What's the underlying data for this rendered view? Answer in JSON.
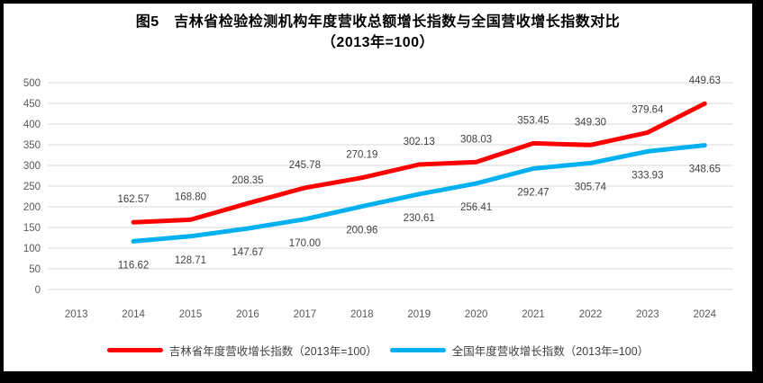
{
  "chart_data": {
    "type": "line",
    "title": "图5　吉林省检验检测机构年度营收总额增长指数与全国营收增长指数对比",
    "subtitle": "（2013年=100）",
    "categories": [
      "2013",
      "2014",
      "2015",
      "2016",
      "2017",
      "2018",
      "2019",
      "2020",
      "2021",
      "2022",
      "2023",
      "2024"
    ],
    "series": [
      {
        "name": "吉林省年度营收增长指数（2013年=100）",
        "color": "#FF0000",
        "start_index": 1,
        "label_position": "above",
        "values": [
          162.57,
          168.8,
          208.35,
          245.78,
          270.19,
          302.13,
          308.03,
          353.45,
          349.3,
          379.64,
          449.63
        ]
      },
      {
        "name": "全国年度营收增长指数（2013年=100）",
        "color": "#00B0F0",
        "start_index": 1,
        "label_position": "below",
        "values": [
          116.62,
          128.71,
          147.67,
          170.0,
          200.96,
          230.61,
          256.41,
          292.47,
          305.74,
          333.93,
          348.65
        ]
      }
    ],
    "ylim": [
      0,
      500
    ],
    "ytick_step": 50,
    "grid": true,
    "legend_position": "bottom",
    "colors": {
      "gridline": "#D9D9D9",
      "axis_text": "#595959",
      "data_label": "#404040",
      "title_text": "#000000",
      "frame_border": "#000000"
    }
  }
}
